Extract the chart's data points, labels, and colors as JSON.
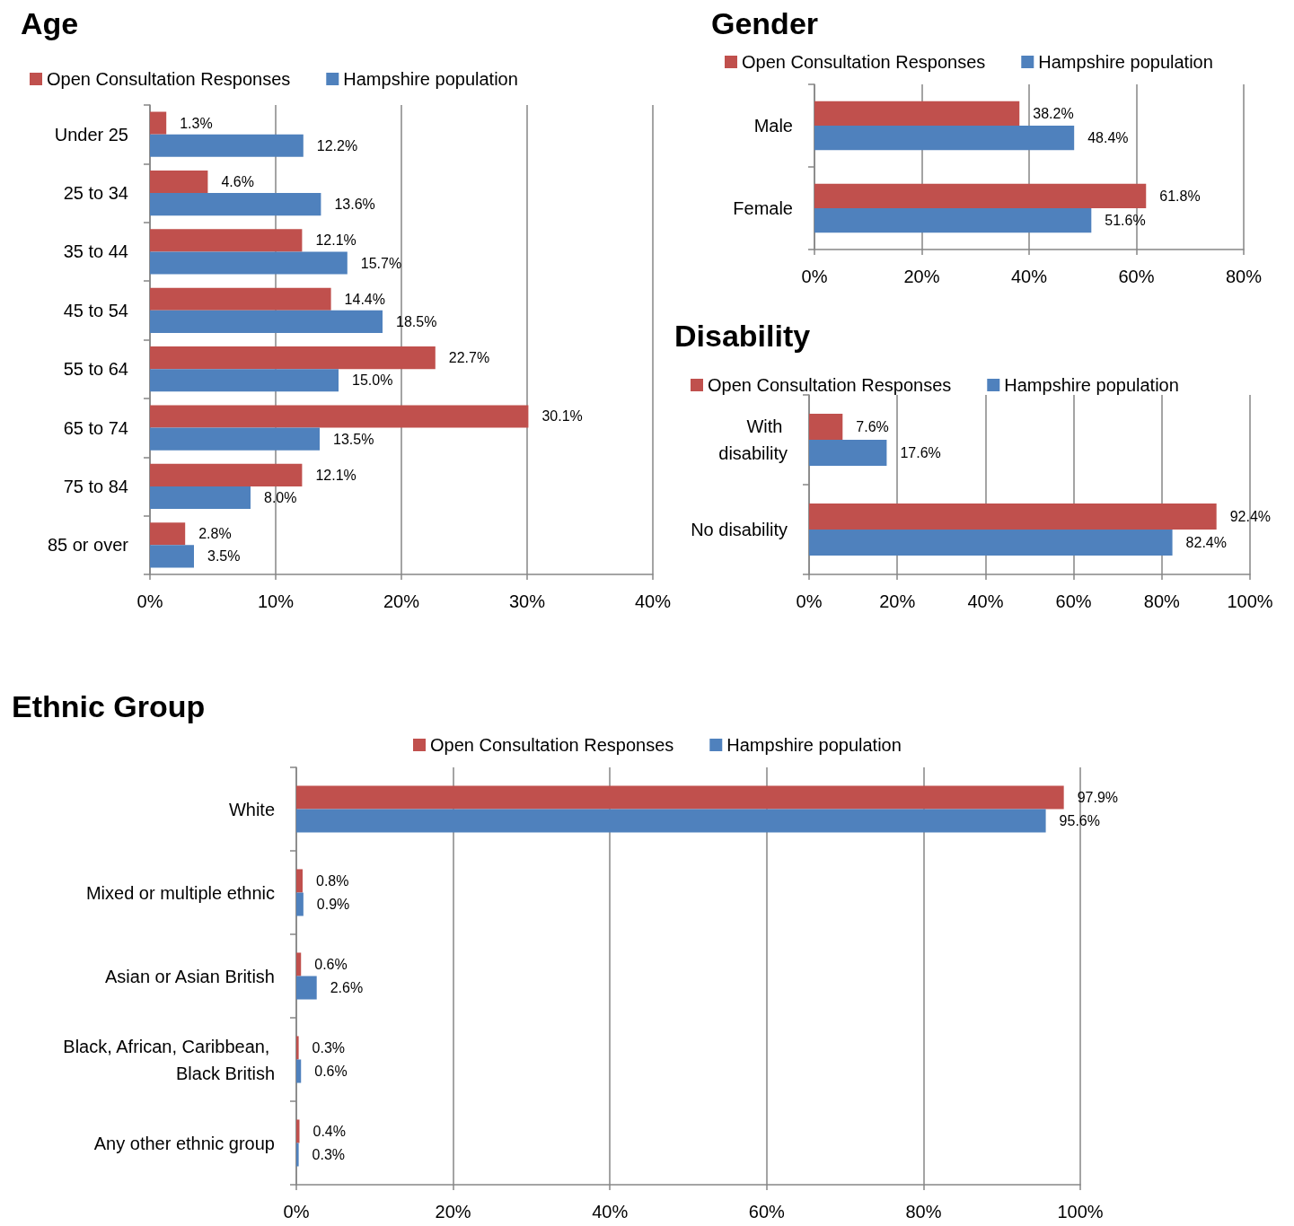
{
  "chart_data": [
    {
      "type": "bar",
      "orientation": "horizontal",
      "title": "Age",
      "categories": [
        "Under 25",
        "25 to 34",
        "35 to 44",
        "45 to 54",
        "55 to 64",
        "65 to 74",
        "75 to 84",
        "85 or over"
      ],
      "series": [
        {
          "name": "Open Consultation Responses",
          "color": "#c0504d",
          "values": [
            1.3,
            4.6,
            12.1,
            14.4,
            22.7,
            30.1,
            12.1,
            2.8
          ],
          "value_labels": [
            "1.3%",
            "4.6%",
            "12.1%",
            "14.4%",
            "22.7%",
            "30.1%",
            "12.1%",
            "2.8%"
          ]
        },
        {
          "name": "Hampshire population",
          "color": "#4f81bd",
          "values": [
            12.2,
            13.6,
            15.7,
            18.5,
            15.0,
            13.5,
            8.0,
            3.5
          ],
          "value_labels": [
            "12.2%",
            "13.6%",
            "15.7%",
            "18.5%",
            "15.0%",
            "13.5%",
            "8.0%",
            "3.5%"
          ]
        }
      ],
      "xlim": [
        0,
        40
      ],
      "xticks": [
        {
          "value": 0,
          "label": "0%"
        },
        {
          "value": 10,
          "label": "10%"
        },
        {
          "value": 20,
          "label": "20%"
        },
        {
          "value": 30,
          "label": "30%"
        },
        {
          "value": 40,
          "label": "40%"
        }
      ],
      "grid": "x",
      "legend": "top"
    },
    {
      "type": "bar",
      "orientation": "horizontal",
      "title": "Gender",
      "categories": [
        "Male",
        "Female"
      ],
      "series": [
        {
          "name": "Open Consultation Responses",
          "color": "#c0504d",
          "values": [
            38.2,
            61.8
          ],
          "value_labels": [
            "38.2%",
            "61.8%"
          ]
        },
        {
          "name": "Hampshire population",
          "color": "#4f81bd",
          "values": [
            48.4,
            51.6
          ],
          "value_labels": [
            "48.4%",
            "51.6%"
          ]
        }
      ],
      "xlim": [
        0,
        80
      ],
      "xticks": [
        {
          "value": 0,
          "label": "0%"
        },
        {
          "value": 20,
          "label": "20%"
        },
        {
          "value": 40,
          "label": "40%"
        },
        {
          "value": 60,
          "label": "60%"
        },
        {
          "value": 80,
          "label": "80%"
        }
      ],
      "grid": "x",
      "legend": "top"
    },
    {
      "type": "bar",
      "orientation": "horizontal",
      "title": "Disability",
      "categories": [
        "With disability",
        "No disability"
      ],
      "series": [
        {
          "name": "Open Consultation Responses",
          "color": "#c0504d",
          "values": [
            7.6,
            92.4
          ],
          "value_labels": [
            "7.6%",
            "92.4%"
          ]
        },
        {
          "name": "Hampshire population",
          "color": "#4f81bd",
          "values": [
            17.6,
            82.4
          ],
          "value_labels": [
            "17.6%",
            "82.4%"
          ]
        }
      ],
      "xlim": [
        0,
        100
      ],
      "xticks": [
        {
          "value": 0,
          "label": "0%"
        },
        {
          "value": 20,
          "label": "20%"
        },
        {
          "value": 40,
          "label": "40%"
        },
        {
          "value": 60,
          "label": "60%"
        },
        {
          "value": 80,
          "label": "80%"
        },
        {
          "value": 100,
          "label": "100%"
        }
      ],
      "grid": "x",
      "legend": "top"
    },
    {
      "type": "bar",
      "orientation": "horizontal",
      "title": "Ethnic Group",
      "categories": [
        "White",
        "Mixed or multiple ethnic",
        "Asian or Asian British",
        "Black, African, Caribbean, Black British",
        "Any other ethnic group"
      ],
      "series": [
        {
          "name": "Open Consultation Responses",
          "color": "#c0504d",
          "values": [
            97.9,
            0.8,
            0.6,
            0.3,
            0.4
          ],
          "value_labels": [
            "97.9%",
            "0.8%",
            "0.6%",
            "0.3%",
            "0.4%"
          ]
        },
        {
          "name": "Hampshire population",
          "color": "#4f81bd",
          "values": [
            95.6,
            0.9,
            2.6,
            0.6,
            0.3
          ],
          "value_labels": [
            "95.6%",
            "0.9%",
            "2.6%",
            "0.6%",
            "0.3%"
          ]
        }
      ],
      "xlim": [
        0,
        100
      ],
      "xticks": [
        {
          "value": 0,
          "label": "0%"
        },
        {
          "value": 20,
          "label": "20%"
        },
        {
          "value": 40,
          "label": "40%"
        },
        {
          "value": 60,
          "label": "60%"
        },
        {
          "value": 80,
          "label": "80%"
        },
        {
          "value": 100,
          "label": "100%"
        }
      ],
      "grid": "x",
      "legend": "top"
    }
  ]
}
